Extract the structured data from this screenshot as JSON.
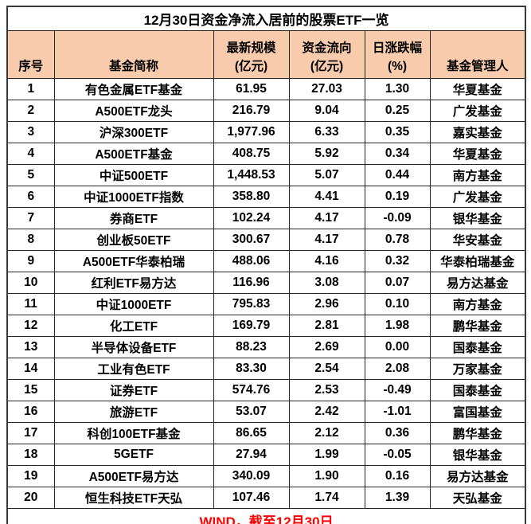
{
  "colors": {
    "header_bg": "#F8CBAD",
    "footer_text": "#FF0000",
    "border": "#262626",
    "text": "#000000"
  },
  "chart_data": {
    "type": "table",
    "title": "12月30日资金净流入居前的股票ETF一览",
    "columns": [
      "序号",
      "基金简称",
      "最新规模\n(亿元)",
      "资金流向\n(亿元)",
      "日涨跌幅\n(%)",
      "基金管理人"
    ],
    "rows": [
      [
        "1",
        "有色金属ETF基金",
        "61.95",
        "27.03",
        "1.30",
        "华夏基金"
      ],
      [
        "2",
        "A500ETF龙头",
        "216.79",
        "9.04",
        "0.25",
        "广发基金"
      ],
      [
        "3",
        "沪深300ETF",
        "1,977.96",
        "6.33",
        "0.35",
        "嘉实基金"
      ],
      [
        "4",
        "A500ETF基金",
        "408.75",
        "5.92",
        "0.34",
        "华夏基金"
      ],
      [
        "5",
        "中证500ETF",
        "1,448.53",
        "5.07",
        "0.44",
        "南方基金"
      ],
      [
        "6",
        "中证1000ETF指数",
        "358.80",
        "4.41",
        "0.19",
        "广发基金"
      ],
      [
        "7",
        "券商ETF",
        "102.24",
        "4.17",
        "-0.09",
        "银华基金"
      ],
      [
        "8",
        "创业板50ETF",
        "300.67",
        "4.17",
        "0.78",
        "华安基金"
      ],
      [
        "9",
        "A500ETF华泰柏瑞",
        "488.06",
        "4.16",
        "0.32",
        "华泰柏瑞基金"
      ],
      [
        "10",
        "红利ETF易方达",
        "116.96",
        "3.08",
        "0.07",
        "易方达基金"
      ],
      [
        "11",
        "中证1000ETF",
        "795.83",
        "2.96",
        "0.10",
        "南方基金"
      ],
      [
        "12",
        "化工ETF",
        "169.79",
        "2.81",
        "1.98",
        "鹏华基金"
      ],
      [
        "13",
        "半导体设备ETF",
        "88.23",
        "2.69",
        "0.00",
        "国泰基金"
      ],
      [
        "14",
        "工业有色ETF",
        "83.30",
        "2.54",
        "2.08",
        "万家基金"
      ],
      [
        "15",
        "证券ETF",
        "574.76",
        "2.53",
        "-0.49",
        "国泰基金"
      ],
      [
        "16",
        "旅游ETF",
        "53.07",
        "2.42",
        "-1.01",
        "富国基金"
      ],
      [
        "17",
        "科创100ETF基金",
        "86.65",
        "2.12",
        "0.36",
        "鹏华基金"
      ],
      [
        "18",
        "5GETF",
        "27.94",
        "1.99",
        "-0.05",
        "银华基金"
      ],
      [
        "19",
        "A500ETF易方达",
        "340.09",
        "1.90",
        "0.16",
        "易方达基金"
      ],
      [
        "20",
        "恒生科技ETF天弘",
        "107.46",
        "1.74",
        "1.39",
        "天弘基金"
      ]
    ],
    "source_note": "WIND，截至12月30日"
  }
}
